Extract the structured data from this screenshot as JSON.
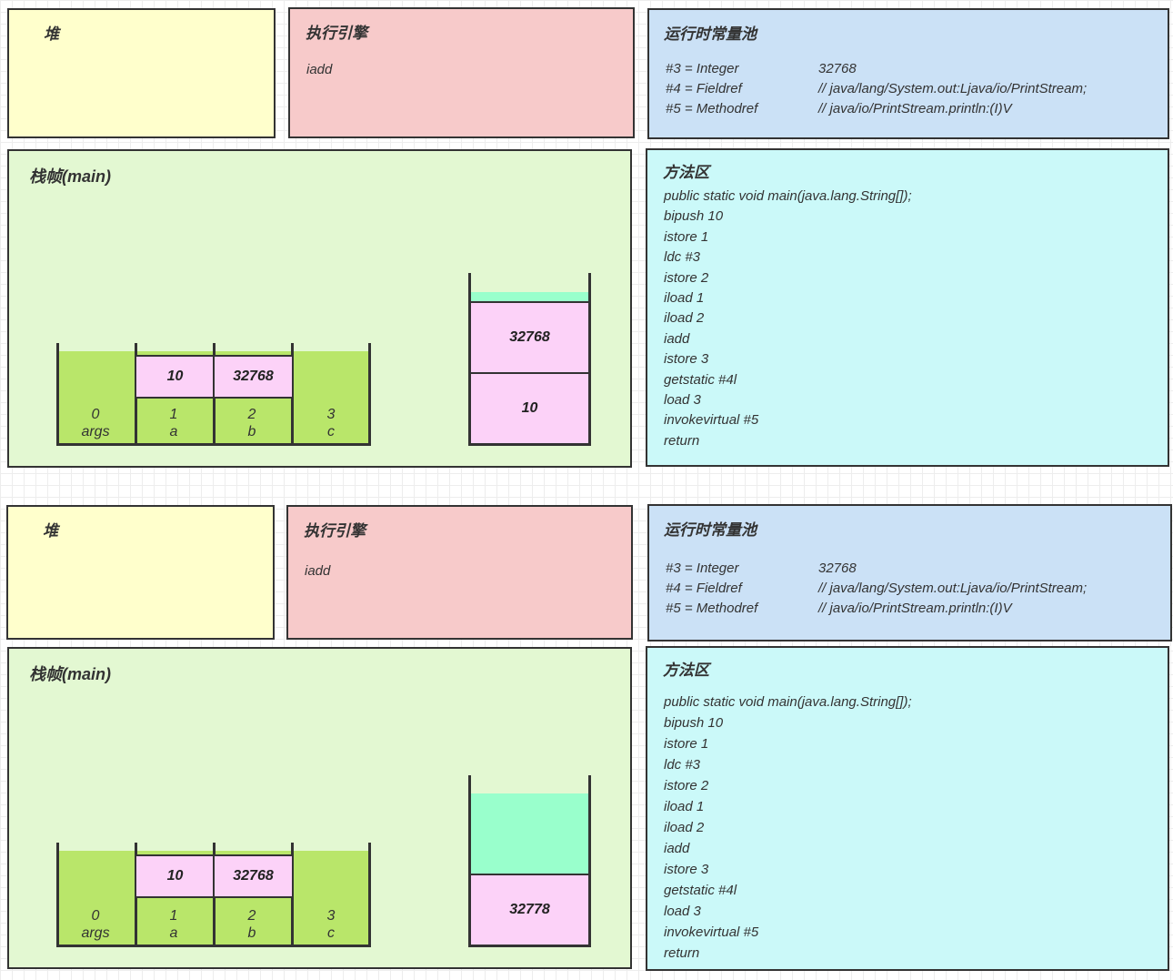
{
  "colors": {
    "heap_fill": "#FFFFCC",
    "exec_fill": "#F7CACA",
    "pool_fill": "#CBE1F6",
    "frame_fill": "#E3F8D2",
    "slot_fill": "#B9E66A",
    "value_fill": "#FCD2F8",
    "method_fill": "#CBF9F9",
    "mint_fill": "#99FFCC",
    "border": "#333333"
  },
  "sections": [
    {
      "heap": {
        "title": "堆"
      },
      "engine": {
        "title": "执行引擎",
        "instruction": "iadd"
      },
      "pool": {
        "title": "运行时常量池",
        "rows": [
          {
            "label": "#3 = Integer",
            "value": "32768"
          },
          {
            "label": "#4 = Fieldref",
            "value": "// java/lang/System.out:Ljava/io/PrintStream;"
          },
          {
            "label": "#5 = Methodref",
            "value": "// java/io/PrintStream.println:(I)V"
          }
        ]
      },
      "frame": {
        "title": "栈帧(main)",
        "locals": {
          "slots": [
            {
              "index": "0",
              "name": "args",
              "value": ""
            },
            {
              "index": "1",
              "name": "a",
              "value": "10"
            },
            {
              "index": "2",
              "name": "b",
              "value": "32768"
            },
            {
              "index": "3",
              "name": "c",
              "value": ""
            }
          ]
        },
        "stack": {
          "cells": [
            "32768",
            "10"
          ]
        }
      },
      "method": {
        "title": "方法区",
        "lines": [
          "public static void main(java.lang.String[]);",
          "bipush 10",
          "istore 1",
          "ldc #3",
          "istore 2",
          "iload 1",
          "iload 2",
          "iadd",
          "istore 3",
          "getstatic #4l",
          "load 3",
          "invokevirtual #5",
          "return"
        ]
      }
    },
    {
      "heap": {
        "title": "堆"
      },
      "engine": {
        "title": "执行引擎",
        "instruction": "iadd"
      },
      "pool": {
        "title": "运行时常量池",
        "rows": [
          {
            "label": "#3 = Integer",
            "value": "32768"
          },
          {
            "label": "#4 = Fieldref",
            "value": "// java/lang/System.out:Ljava/io/PrintStream;"
          },
          {
            "label": "#5 = Methodref",
            "value": "// java/io/PrintStream.println:(I)V"
          }
        ]
      },
      "frame": {
        "title": "栈帧(main)",
        "locals": {
          "slots": [
            {
              "index": "0",
              "name": "args",
              "value": ""
            },
            {
              "index": "1",
              "name": "a",
              "value": "10"
            },
            {
              "index": "2",
              "name": "b",
              "value": "32768"
            },
            {
              "index": "3",
              "name": "c",
              "value": ""
            }
          ]
        },
        "stack": {
          "cells": [
            "32778"
          ]
        }
      },
      "method": {
        "title": "方法区",
        "lines": [
          "public static void main(java.lang.String[]);",
          "bipush 10",
          "istore 1",
          "ldc #3",
          "istore 2",
          "iload 1",
          "iload 2",
          "iadd",
          "istore 3",
          "getstatic #4l",
          "load 3",
          "invokevirtual #5",
          "return"
        ]
      }
    }
  ]
}
